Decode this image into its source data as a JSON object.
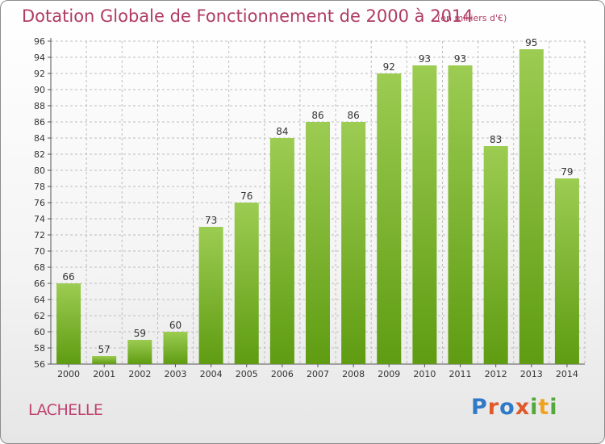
{
  "header": {
    "title": "Dotation Globale de Fonctionnement de 2000 à 2014",
    "subtitle": "(en milliers d'€)"
  },
  "footer": {
    "commune": "LACHELLE",
    "logo_text": "Proxiti"
  },
  "colors": {
    "title": "#b03a64",
    "bar_top": "#9ccc52",
    "bar_bottom": "#5f9c12",
    "grid": "#bdbdbd"
  },
  "chart_data": {
    "type": "bar",
    "title": "Dotation Globale de Fonctionnement de 2000 à 2014",
    "subtitle": "(en milliers d'€)",
    "categories": [
      "2000",
      "2001",
      "2002",
      "2003",
      "2004",
      "2005",
      "2006",
      "2007",
      "2008",
      "2009",
      "2010",
      "2011",
      "2012",
      "2013",
      "2014"
    ],
    "values": [
      66,
      57,
      59,
      60,
      73,
      76,
      84,
      86,
      86,
      92,
      93,
      93,
      83,
      95,
      79
    ],
    "ylim": [
      56,
      96
    ],
    "yticks": [
      56,
      58,
      60,
      62,
      64,
      66,
      68,
      70,
      72,
      74,
      76,
      78,
      80,
      82,
      84,
      86,
      88,
      90,
      92,
      94,
      96
    ],
    "xlabel": "",
    "ylabel": "",
    "grid": true,
    "data_labels": true
  }
}
